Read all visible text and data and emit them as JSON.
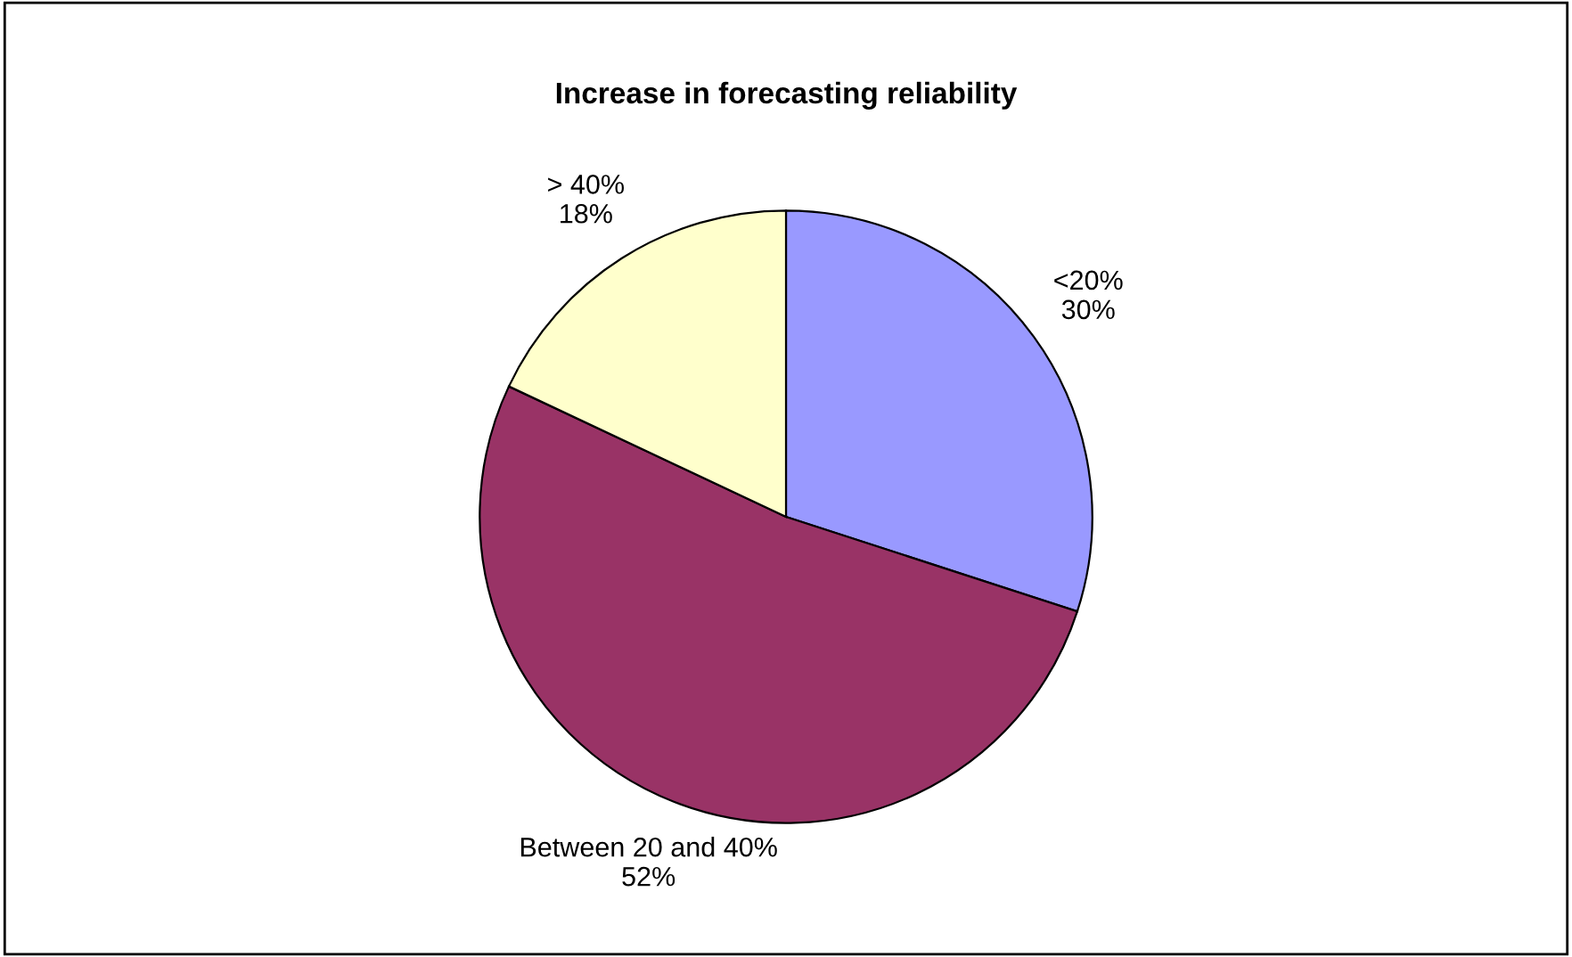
{
  "chart_data": {
    "type": "pie",
    "title": "Increase in forecasting reliability",
    "categories": [
      "<20%",
      "Between 20 and 40%",
      "> 40%"
    ],
    "values": [
      30,
      52,
      18
    ],
    "colors": [
      "#9999ff",
      "#993366",
      "#ffffcc"
    ],
    "value_labels": [
      "30%",
      "52%",
      "18%"
    ],
    "legend": false
  }
}
